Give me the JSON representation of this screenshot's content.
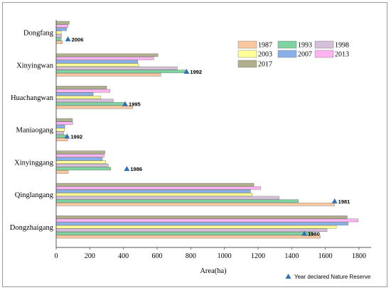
{
  "chart_data": {
    "type": "bar",
    "orientation": "horizontal",
    "xlabel": "Area(ha)",
    "xlim": [
      0,
      1800
    ],
    "xticks": [
      "0",
      "200",
      "400",
      "600",
      "800",
      "1000",
      "1200",
      "1400",
      "1600",
      "1800"
    ],
    "categories": [
      "Dongfang",
      "Xinyingwan",
      "Huachangwan",
      "Maniaogang",
      "Xinyinggang",
      "Qinglangang",
      "Dongzhaigang"
    ],
    "series": [
      {
        "name": "1987",
        "color": "#f9c8a0",
        "values": [
          37,
          622,
          455,
          68,
          72,
          1655,
          1570
        ]
      },
      {
        "name": "1993",
        "color": "#7ed3a0",
        "values": [
          30,
          768,
          405,
          56,
          325,
          1440,
          1525
        ]
      },
      {
        "name": "1998",
        "color": "#d4c0d8",
        "values": [
          32,
          720,
          340,
          45,
          310,
          1325,
          1610
        ]
      },
      {
        "name": "2003",
        "color": "#ffff99",
        "values": [
          30,
          490,
          265,
          50,
          295,
          1165,
          1665
        ]
      },
      {
        "name": "2007",
        "color": "#8ab0ea",
        "values": [
          62,
          485,
          220,
          52,
          275,
          1155,
          1735
        ]
      },
      {
        "name": "2013",
        "color": "#ffb3f0",
        "values": [
          70,
          580,
          320,
          98,
          285,
          1215,
          1795
        ]
      },
      {
        "name": "2017",
        "color": "#b0ae8c",
        "values": [
          78,
          605,
          300,
          97,
          290,
          1175,
          1730
        ]
      }
    ],
    "declared": [
      {
        "category": "Dongfang",
        "year": "2006",
        "area": 70
      },
      {
        "category": "Xinyingwan",
        "year": "1992",
        "area": 775
      },
      {
        "category": "Huachangwan",
        "year": "1995",
        "area": 410
      },
      {
        "category": "Maniaogang",
        "year": "1992",
        "area": 65
      },
      {
        "category": "Xinyinggang",
        "year": "1986",
        "area": 420
      },
      {
        "category": "Qinglangang",
        "year": "1981",
        "area": 1655
      },
      {
        "category": "Dongzhaigang",
        "year": "1980",
        "area": 1475
      }
    ],
    "marker_legend": "Year declared Nature Reserve",
    "legend_position": "top-right",
    "grid": false
  }
}
